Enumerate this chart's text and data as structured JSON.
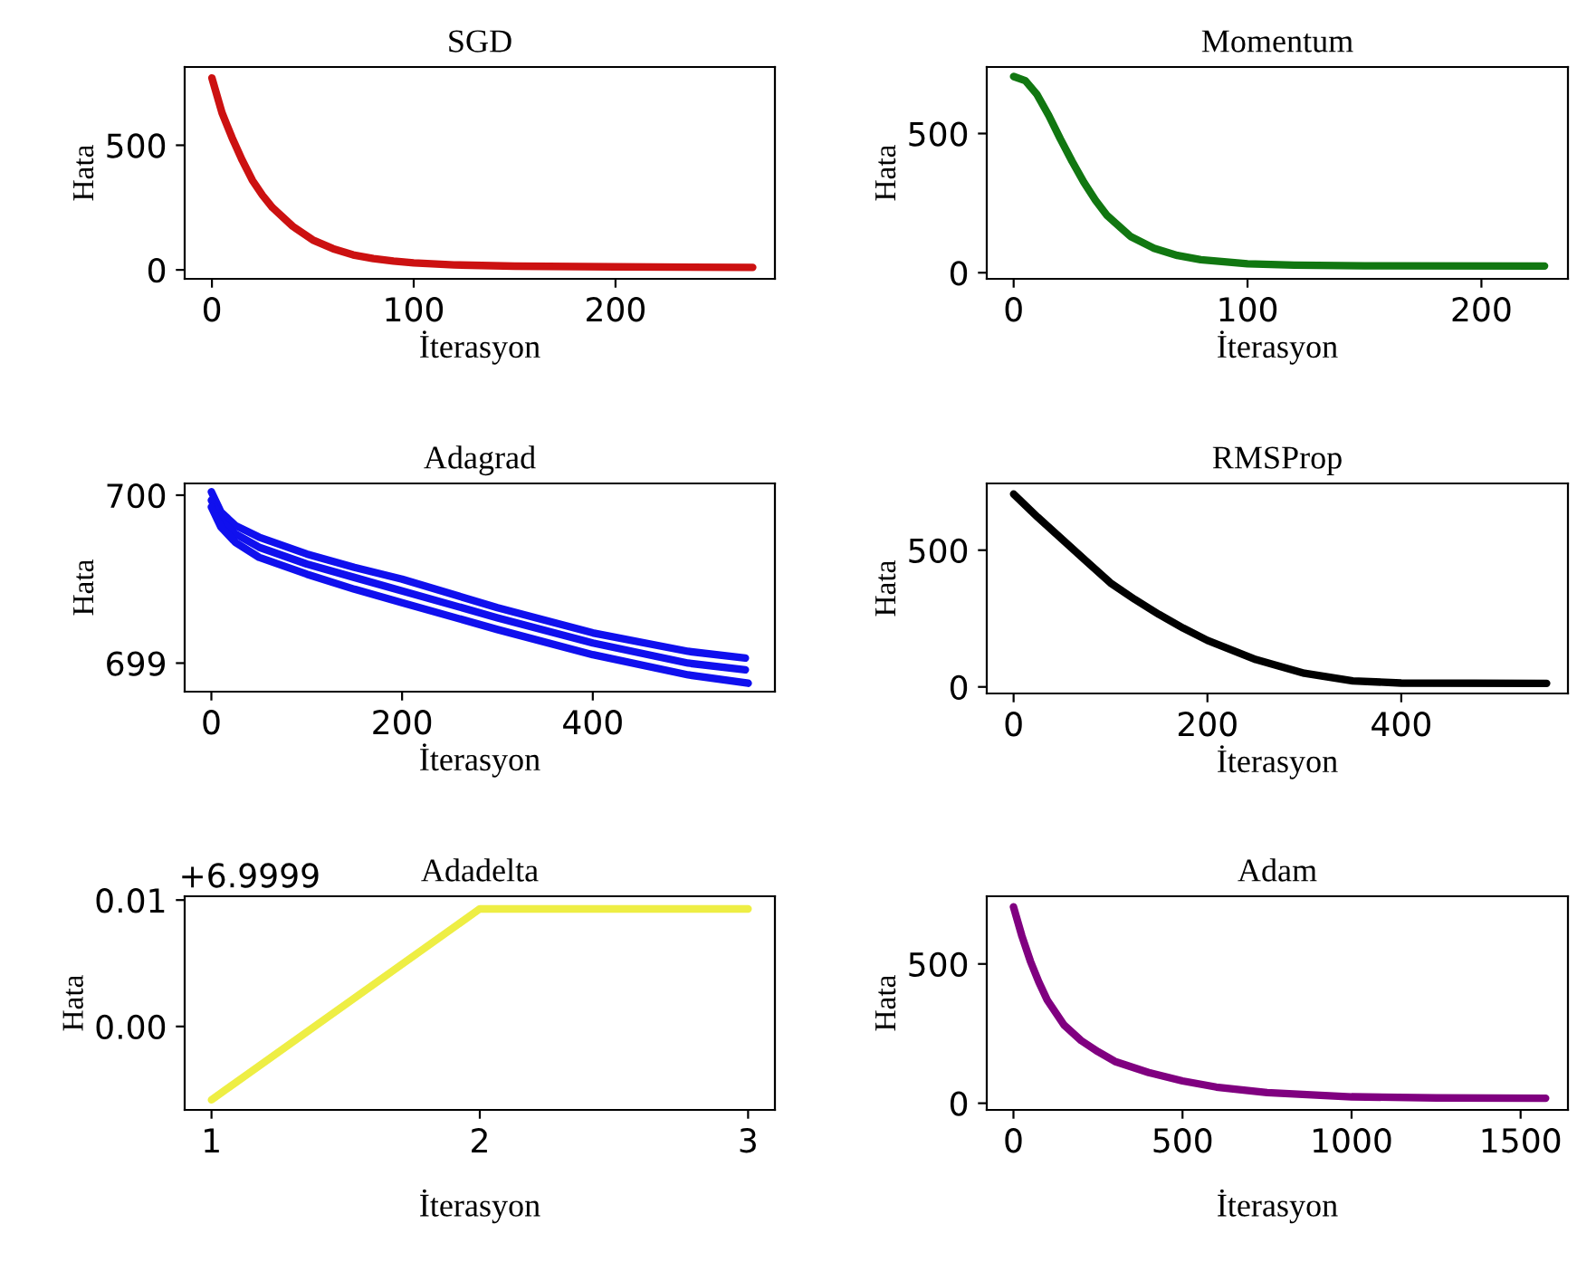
{
  "chart_data": [
    {
      "type": "line",
      "title": "SGD",
      "xlabel": "İterasyon",
      "ylabel": "Hata",
      "xlim": [
        -13.5,
        279
      ],
      "ylim": [
        -36,
        814
      ],
      "xticks": [
        0,
        100,
        200
      ],
      "yticks": [
        0,
        500
      ],
      "series": [
        {
          "color": "#cc1111",
          "x": [
            0,
            5,
            10,
            15,
            20,
            25,
            30,
            40,
            50,
            60,
            70,
            80,
            90,
            100,
            120,
            150,
            200,
            268
          ],
          "values": [
            770,
            630,
            530,
            440,
            360,
            300,
            250,
            175,
            120,
            85,
            60,
            45,
            35,
            28,
            20,
            15,
            12,
            10
          ]
        }
      ]
    },
    {
      "type": "line",
      "title": "Momentum",
      "xlabel": "İterasyon",
      "ylabel": "Hata",
      "xlim": [
        -11.5,
        237
      ],
      "ylim": [
        -22,
        739
      ],
      "xticks": [
        0,
        100,
        200
      ],
      "yticks": [
        0,
        500
      ],
      "series": [
        {
          "color": "#117711",
          "x": [
            0,
            5,
            10,
            15,
            20,
            25,
            30,
            35,
            40,
            50,
            60,
            70,
            80,
            100,
            120,
            150,
            227
          ],
          "values": [
            705,
            690,
            640,
            565,
            480,
            400,
            325,
            260,
            205,
            130,
            88,
            62,
            47,
            32,
            27,
            25,
            24
          ]
        }
      ]
    },
    {
      "type": "line",
      "title": "Adagrad",
      "xlabel": "İterasyon",
      "ylabel": "Hata",
      "xlim": [
        -28,
        591
      ],
      "ylim": [
        698.83,
        700.07
      ],
      "xticks": [
        0,
        200,
        400
      ],
      "yticks": [
        699,
        700
      ],
      "series": [
        {
          "color": "#1010ee",
          "x": [
            0,
            10,
            25,
            50,
            100,
            150,
            200,
            300,
            400,
            500,
            560
          ],
          "values": [
            700.02,
            699.9,
            699.82,
            699.75,
            699.65,
            699.57,
            699.5,
            699.33,
            699.18,
            699.07,
            699.03
          ]
        },
        {
          "color": "#1010ee",
          "x": [
            0,
            10,
            25,
            50,
            100,
            150,
            200,
            300,
            400,
            500,
            560
          ],
          "values": [
            699.97,
            699.85,
            699.77,
            699.69,
            699.59,
            699.51,
            699.43,
            699.27,
            699.12,
            699.0,
            698.96
          ]
        },
        {
          "color": "#1010ee",
          "x": [
            0,
            10,
            25,
            50,
            100,
            150,
            200,
            300,
            400,
            500,
            563
          ],
          "values": [
            699.93,
            699.81,
            699.72,
            699.63,
            699.53,
            699.44,
            699.36,
            699.2,
            699.05,
            698.93,
            698.88
          ]
        }
      ]
    },
    {
      "type": "line",
      "title": "RMSProp",
      "xlabel": "İterasyon",
      "ylabel": "Hata",
      "xlim": [
        -27.7,
        572
      ],
      "ylim": [
        -24,
        744
      ],
      "xticks": [
        0,
        200,
        400
      ],
      "yticks": [
        0,
        500
      ],
      "series": [
        {
          "color": "#000000",
          "x": [
            0,
            25,
            50,
            75,
            100,
            125,
            150,
            175,
            200,
            250,
            300,
            350,
            400,
            550
          ],
          "values": [
            705,
            620,
            540,
            460,
            380,
            320,
            265,
            215,
            170,
            100,
            50,
            22,
            14,
            13
          ]
        }
      ]
    },
    {
      "type": "line",
      "title": "Adadelta",
      "xlabel": "İterasyon",
      "ylabel": "Hata",
      "xlim": [
        0.9,
        3.1
      ],
      "ylim": [
        -0.0066,
        0.0103
      ],
      "xticks": [
        1,
        2,
        3
      ],
      "yticks": [
        0.01,
        {
          "value": 0,
          "label": "0.00"
        }
      ],
      "annotations": [
        "+6.9999"
      ],
      "series": [
        {
          "color": "#eeee44",
          "x": [
            1,
            2,
            3
          ],
          "values": [
            -0.0058,
            0.0093,
            0.0093
          ]
        }
      ]
    },
    {
      "type": "line",
      "title": "Adam",
      "xlabel": "İterasyon",
      "ylabel": "Hata",
      "xlim": [
        -79,
        1640
      ],
      "ylim": [
        -24,
        743
      ],
      "xticks": [
        0,
        500,
        1000,
        1500
      ],
      "yticks": [
        0,
        500
      ],
      "series": [
        {
          "color": "#800080",
          "x": [
            0,
            25,
            50,
            75,
            100,
            150,
            200,
            250,
            300,
            400,
            500,
            600,
            750,
            1000,
            1250,
            1574
          ],
          "values": [
            705,
            600,
            510,
            435,
            370,
            280,
            225,
            185,
            150,
            110,
            80,
            58,
            38,
            23,
            19,
            18
          ]
        }
      ]
    }
  ]
}
